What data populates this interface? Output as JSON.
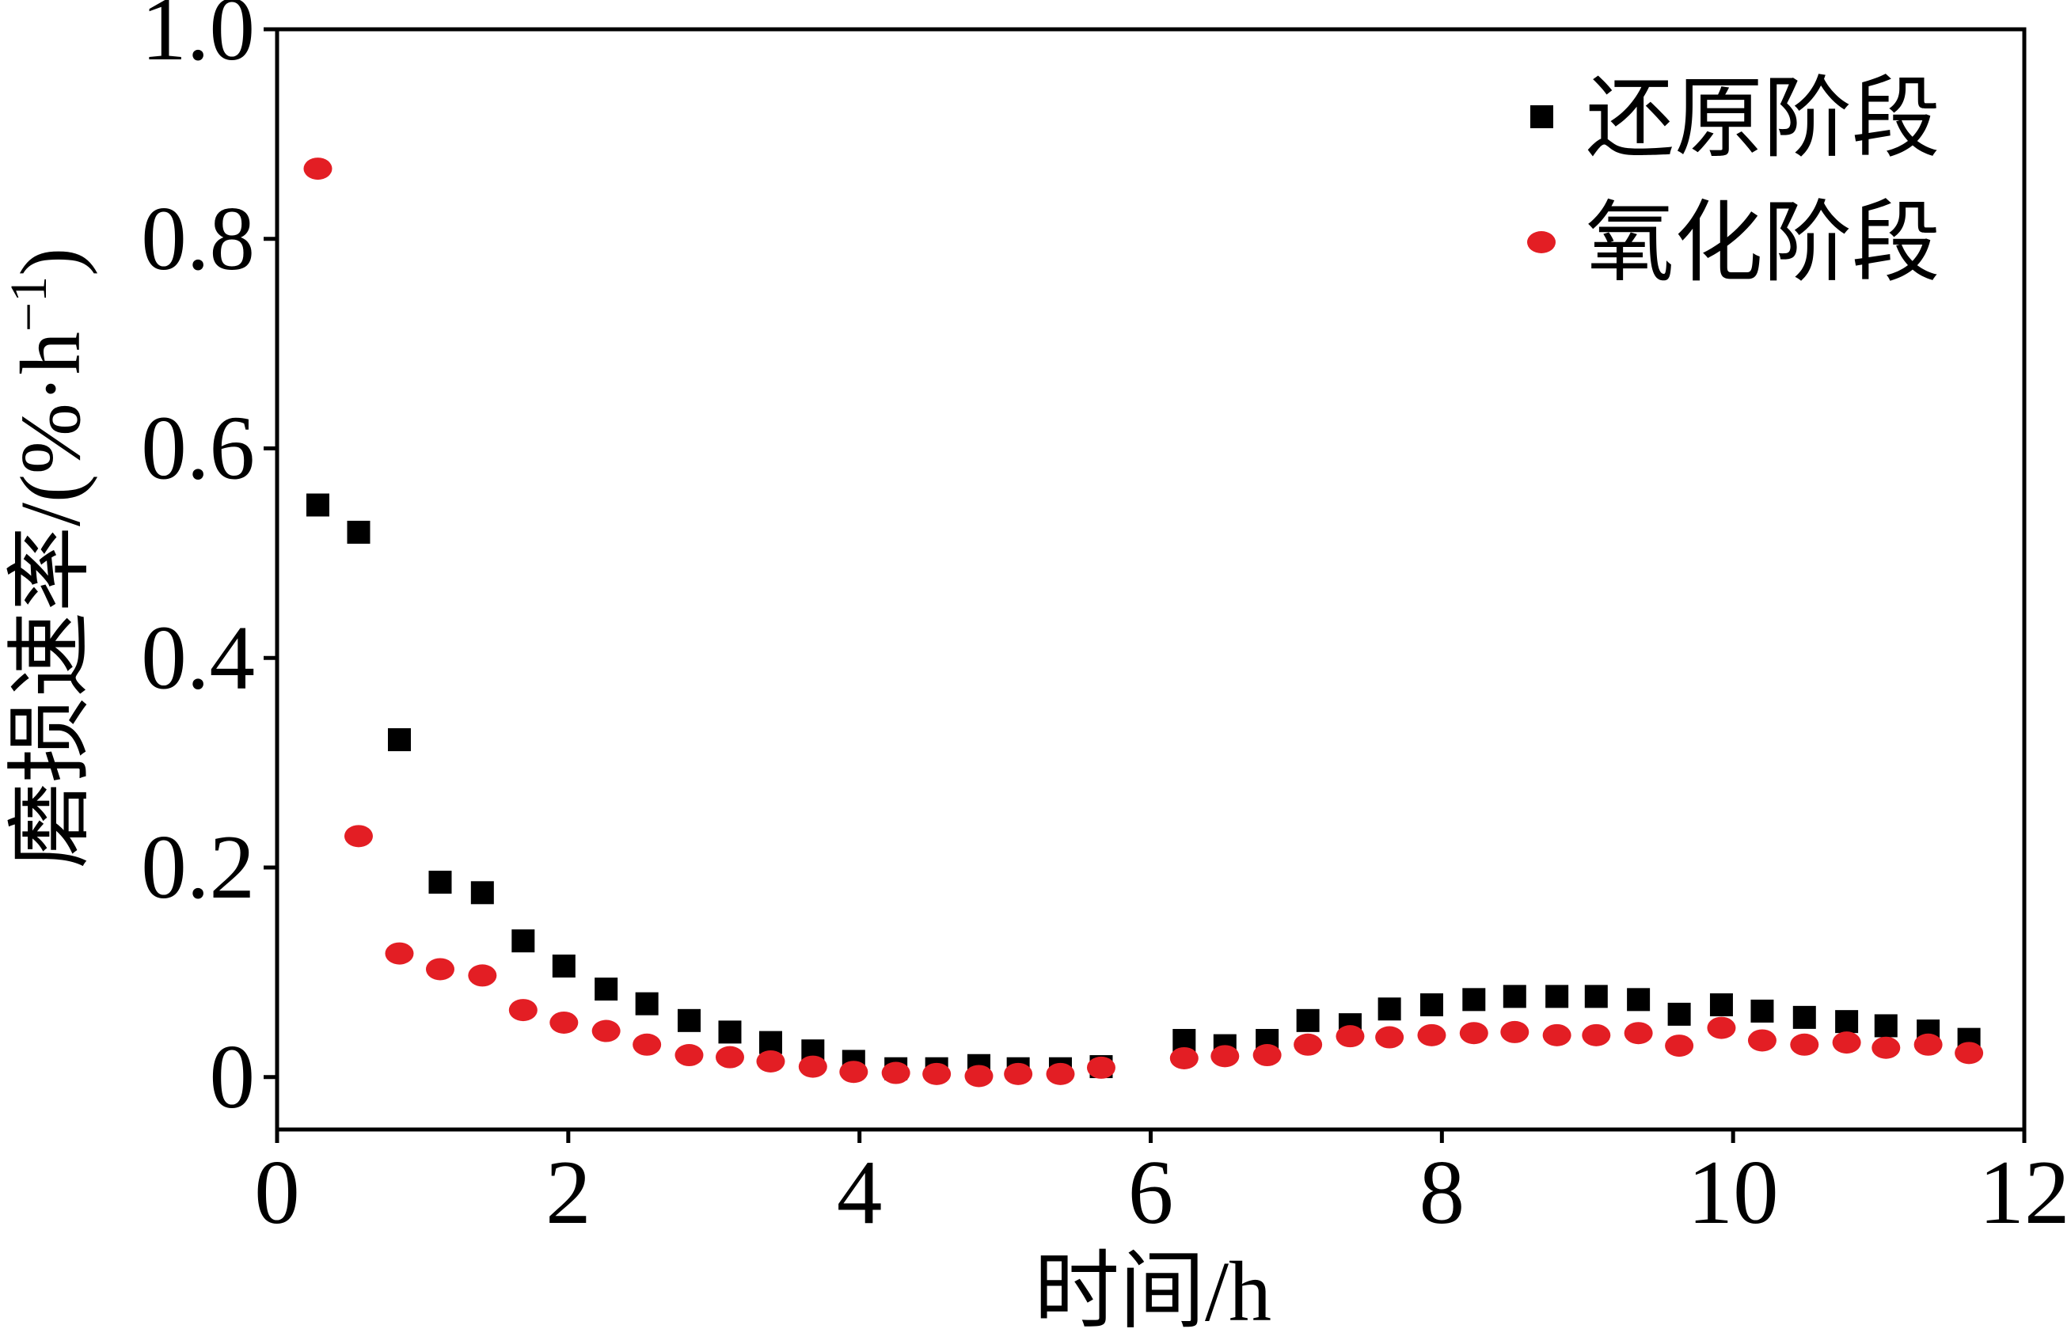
{
  "chart_data": {
    "type": "scatter",
    "xlabel": "时间/h",
    "ylabel": {
      "main": "磨损速率/(%·h",
      "sup": "−1",
      "close": ")"
    },
    "xlim": [
      0,
      12
    ],
    "ylim": [
      -0.05,
      1.0
    ],
    "x_ticks": [
      "0",
      "2",
      "4",
      "6",
      "8",
      "10",
      "12"
    ],
    "y_ticks": [
      "0",
      "0.2",
      "0.4",
      "0.6",
      "0.8",
      "1.0"
    ],
    "grid": false,
    "legend_position": "top-right",
    "x": [
      0.28,
      0.56,
      0.84,
      1.12,
      1.41,
      1.69,
      1.97,
      2.26,
      2.54,
      2.83,
      3.11,
      3.39,
      3.68,
      3.96,
      4.25,
      4.53,
      4.82,
      5.09,
      5.38,
      5.66,
      6.23,
      6.51,
      6.8,
      7.08,
      7.37,
      7.64,
      7.93,
      8.22,
      8.5,
      8.79,
      9.06,
      9.35,
      9.63,
      9.92,
      10.2,
      10.49,
      10.78,
      11.05,
      11.34,
      11.62
    ],
    "series": [
      {
        "name": "还原阶段",
        "marker": "square",
        "color": "#000000",
        "values": [
          0.546,
          0.52,
          0.322,
          0.186,
          0.176,
          0.13,
          0.106,
          0.084,
          0.07,
          0.054,
          0.043,
          0.033,
          0.025,
          0.015,
          0.008,
          0.008,
          0.011,
          0.008,
          0.008,
          0.01,
          0.035,
          0.03,
          0.035,
          0.054,
          0.05,
          0.065,
          0.069,
          0.074,
          0.077,
          0.077,
          0.077,
          0.074,
          0.06,
          0.069,
          0.063,
          0.057,
          0.053,
          0.049,
          0.044,
          0.036
        ]
      },
      {
        "name": "氧化阶段",
        "marker": "circle",
        "color": "#e31e24",
        "values": [
          0.867,
          0.23,
          0.118,
          0.103,
          0.097,
          0.064,
          0.052,
          0.044,
          0.031,
          0.021,
          0.019,
          0.015,
          0.01,
          0.005,
          0.004,
          0.003,
          0.001,
          0.003,
          0.003,
          0.009,
          0.018,
          0.02,
          0.021,
          0.031,
          0.039,
          0.038,
          0.04,
          0.042,
          0.043,
          0.04,
          0.04,
          0.042,
          0.03,
          0.047,
          0.035,
          0.031,
          0.033,
          0.028,
          0.031,
          0.023
        ]
      }
    ]
  }
}
